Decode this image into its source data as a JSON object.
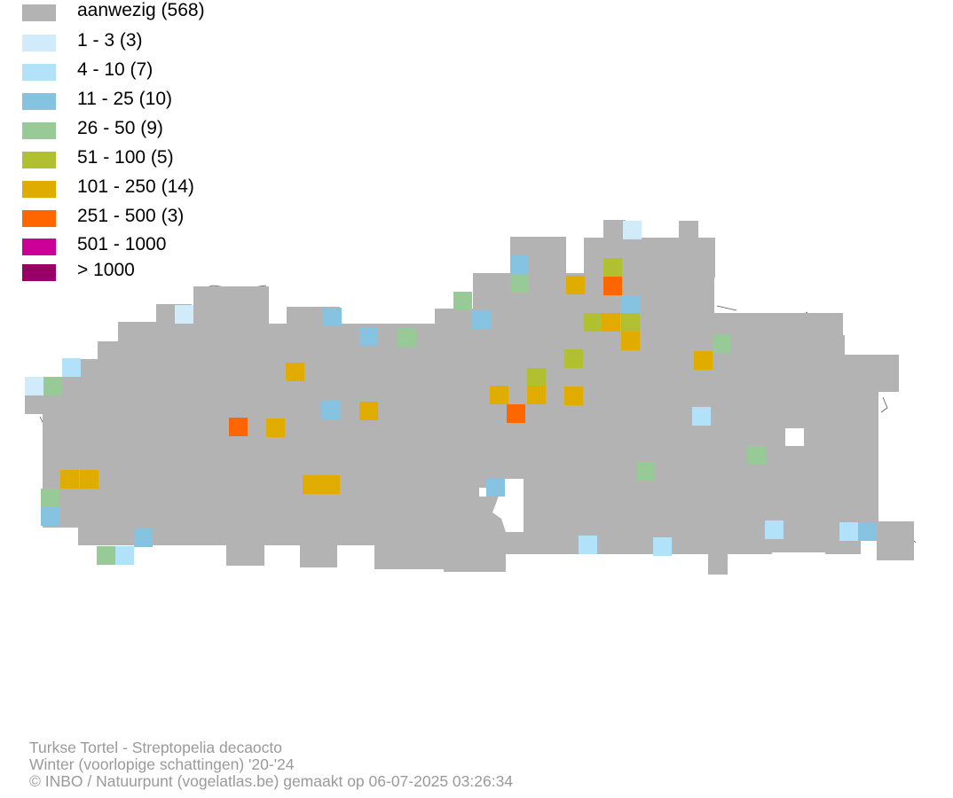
{
  "legend": [
    {
      "label": "aanwezig (568)",
      "color": "#b3b3b3"
    },
    {
      "label": "1 - 3 (3)",
      "color": "#d2ebfa"
    },
    {
      "label": "4 - 10 (7)",
      "color": "#b2e2fa"
    },
    {
      "label": "11 - 25 (10)",
      "color": "#86c3e1"
    },
    {
      "label": "26 - 50 (9)",
      "color": "#98ca97"
    },
    {
      "label": "51 - 100 (5)",
      "color": "#b0c030"
    },
    {
      "label": "101 - 250 (14)",
      "color": "#e1ac00"
    },
    {
      "label": "251 - 500 (3)",
      "color": "#ff6600"
    },
    {
      "label": "501 - 1000",
      "color": "#cc0099"
    },
    {
      "label": "> 1000",
      "color": "#990066"
    }
  ],
  "caption": {
    "species": "Turkse Tortel - Streptopelia decaocto",
    "period": "Winter (voorlopige schattingen) '20-'24",
    "credit": "© INBO / Natuurpunt (vogelatlas.be) gemaakt op 06-07-2025 03:26:34"
  }
}
